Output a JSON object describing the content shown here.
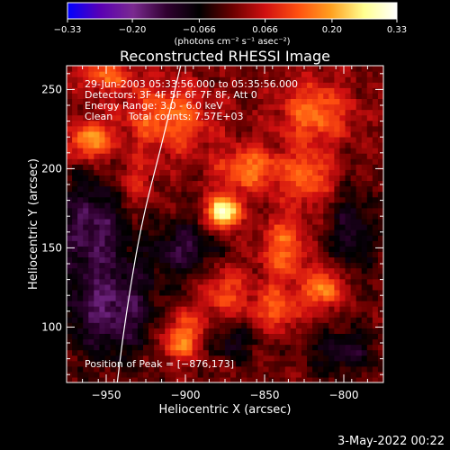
{
  "chart_data": {
    "type": "heatmap",
    "title": "Reconstructed RHESSI Image",
    "xlabel": "Heliocentric X (arcsec)",
    "ylabel": "Heliocentric Y (arcsec)",
    "xlim": [
      -975,
      -775
    ],
    "ylim": [
      65,
      265
    ],
    "x_ticks": [
      -950,
      -900,
      -850,
      -800
    ],
    "x_tick_labels": [
      "−950",
      "−900",
      "−850",
      "−800"
    ],
    "y_ticks": [
      100,
      150,
      200,
      250
    ],
    "y_tick_labels": [
      "100",
      "150",
      "200",
      "250"
    ],
    "colorbar": {
      "range": [
        -0.33,
        0.33
      ],
      "ticks": [
        -0.33,
        -0.2,
        -0.066,
        0.066,
        0.2,
        0.33
      ],
      "tick_labels": [
        "−0.33",
        "−0.20",
        "−0.066",
        "0.066",
        "0.20",
        "0.33"
      ],
      "units": "(photons cm⁻² s⁻¹ asec⁻²)",
      "colors": [
        "#0000ff",
        "#5a00b4",
        "#7a2a8f",
        "#300030",
        "#000000",
        "#6a0000",
        "#d01010",
        "#ff5010",
        "#ffa020",
        "#ffff90",
        "#ffffff"
      ]
    },
    "info_lines": [
      "29-Jun-2003 05:33:56.000 to 05:35:56.000",
      "Detectors: 3F 4F 5F 6F 7F 8F, Att 0",
      "Energy Range: 3.0 - 6.0 keV",
      "Clean     Total counts: 7.57E+03"
    ],
    "peak_label": "Position of Peak = [−876,173]",
    "peak": {
      "x": -876,
      "y": 173,
      "value": 0.33
    },
    "limb": {
      "points": [
        [
          -943,
          65
        ],
        [
          -938,
          105
        ],
        [
          -928,
          165
        ],
        [
          -915,
          215
        ],
        [
          -903,
          265
        ]
      ]
    },
    "sources": [
      {
        "x": -876,
        "y": 173,
        "amp": 0.33,
        "sx": 7,
        "sy": 7
      },
      {
        "x": -960,
        "y": 218,
        "amp": 0.2,
        "sx": 9,
        "sy": 8
      },
      {
        "x": -912,
        "y": 232,
        "amp": 0.15,
        "sx": 20,
        "sy": 16
      },
      {
        "x": -860,
        "y": 200,
        "amp": 0.16,
        "sx": 14,
        "sy": 10
      },
      {
        "x": -818,
        "y": 236,
        "amp": 0.16,
        "sx": 16,
        "sy": 14
      },
      {
        "x": -822,
        "y": 195,
        "amp": 0.14,
        "sx": 12,
        "sy": 12
      },
      {
        "x": -838,
        "y": 150,
        "amp": 0.15,
        "sx": 10,
        "sy": 14
      },
      {
        "x": -812,
        "y": 125,
        "amp": 0.18,
        "sx": 9,
        "sy": 9
      },
      {
        "x": -842,
        "y": 112,
        "amp": 0.13,
        "sx": 12,
        "sy": 10
      },
      {
        "x": -875,
        "y": 122,
        "amp": 0.12,
        "sx": 10,
        "sy": 12
      },
      {
        "x": -900,
        "y": 100,
        "amp": 0.11,
        "sx": 10,
        "sy": 10
      },
      {
        "x": -905,
        "y": 88,
        "amp": 0.12,
        "sx": 8,
        "sy": 8
      },
      {
        "x": -950,
        "y": 260,
        "amp": 0.14,
        "sx": 12,
        "sy": 8
      },
      {
        "x": -932,
        "y": 190,
        "amp": 0.09,
        "sx": 8,
        "sy": 10
      },
      {
        "x": -948,
        "y": 112,
        "amp": -0.16,
        "sx": 22,
        "sy": 22
      },
      {
        "x": -960,
        "y": 165,
        "amp": -0.15,
        "sx": 16,
        "sy": 20
      },
      {
        "x": -900,
        "y": 150,
        "amp": -0.13,
        "sx": 14,
        "sy": 12
      },
      {
        "x": -870,
        "y": 92,
        "amp": -0.1,
        "sx": 10,
        "sy": 10
      },
      {
        "x": -795,
        "y": 160,
        "amp": -0.11,
        "sx": 10,
        "sy": 20
      },
      {
        "x": -800,
        "y": 85,
        "amp": -0.12,
        "sx": 14,
        "sy": 10
      }
    ]
  },
  "footer": {
    "timestamp": "3-May-2022 00:22"
  }
}
